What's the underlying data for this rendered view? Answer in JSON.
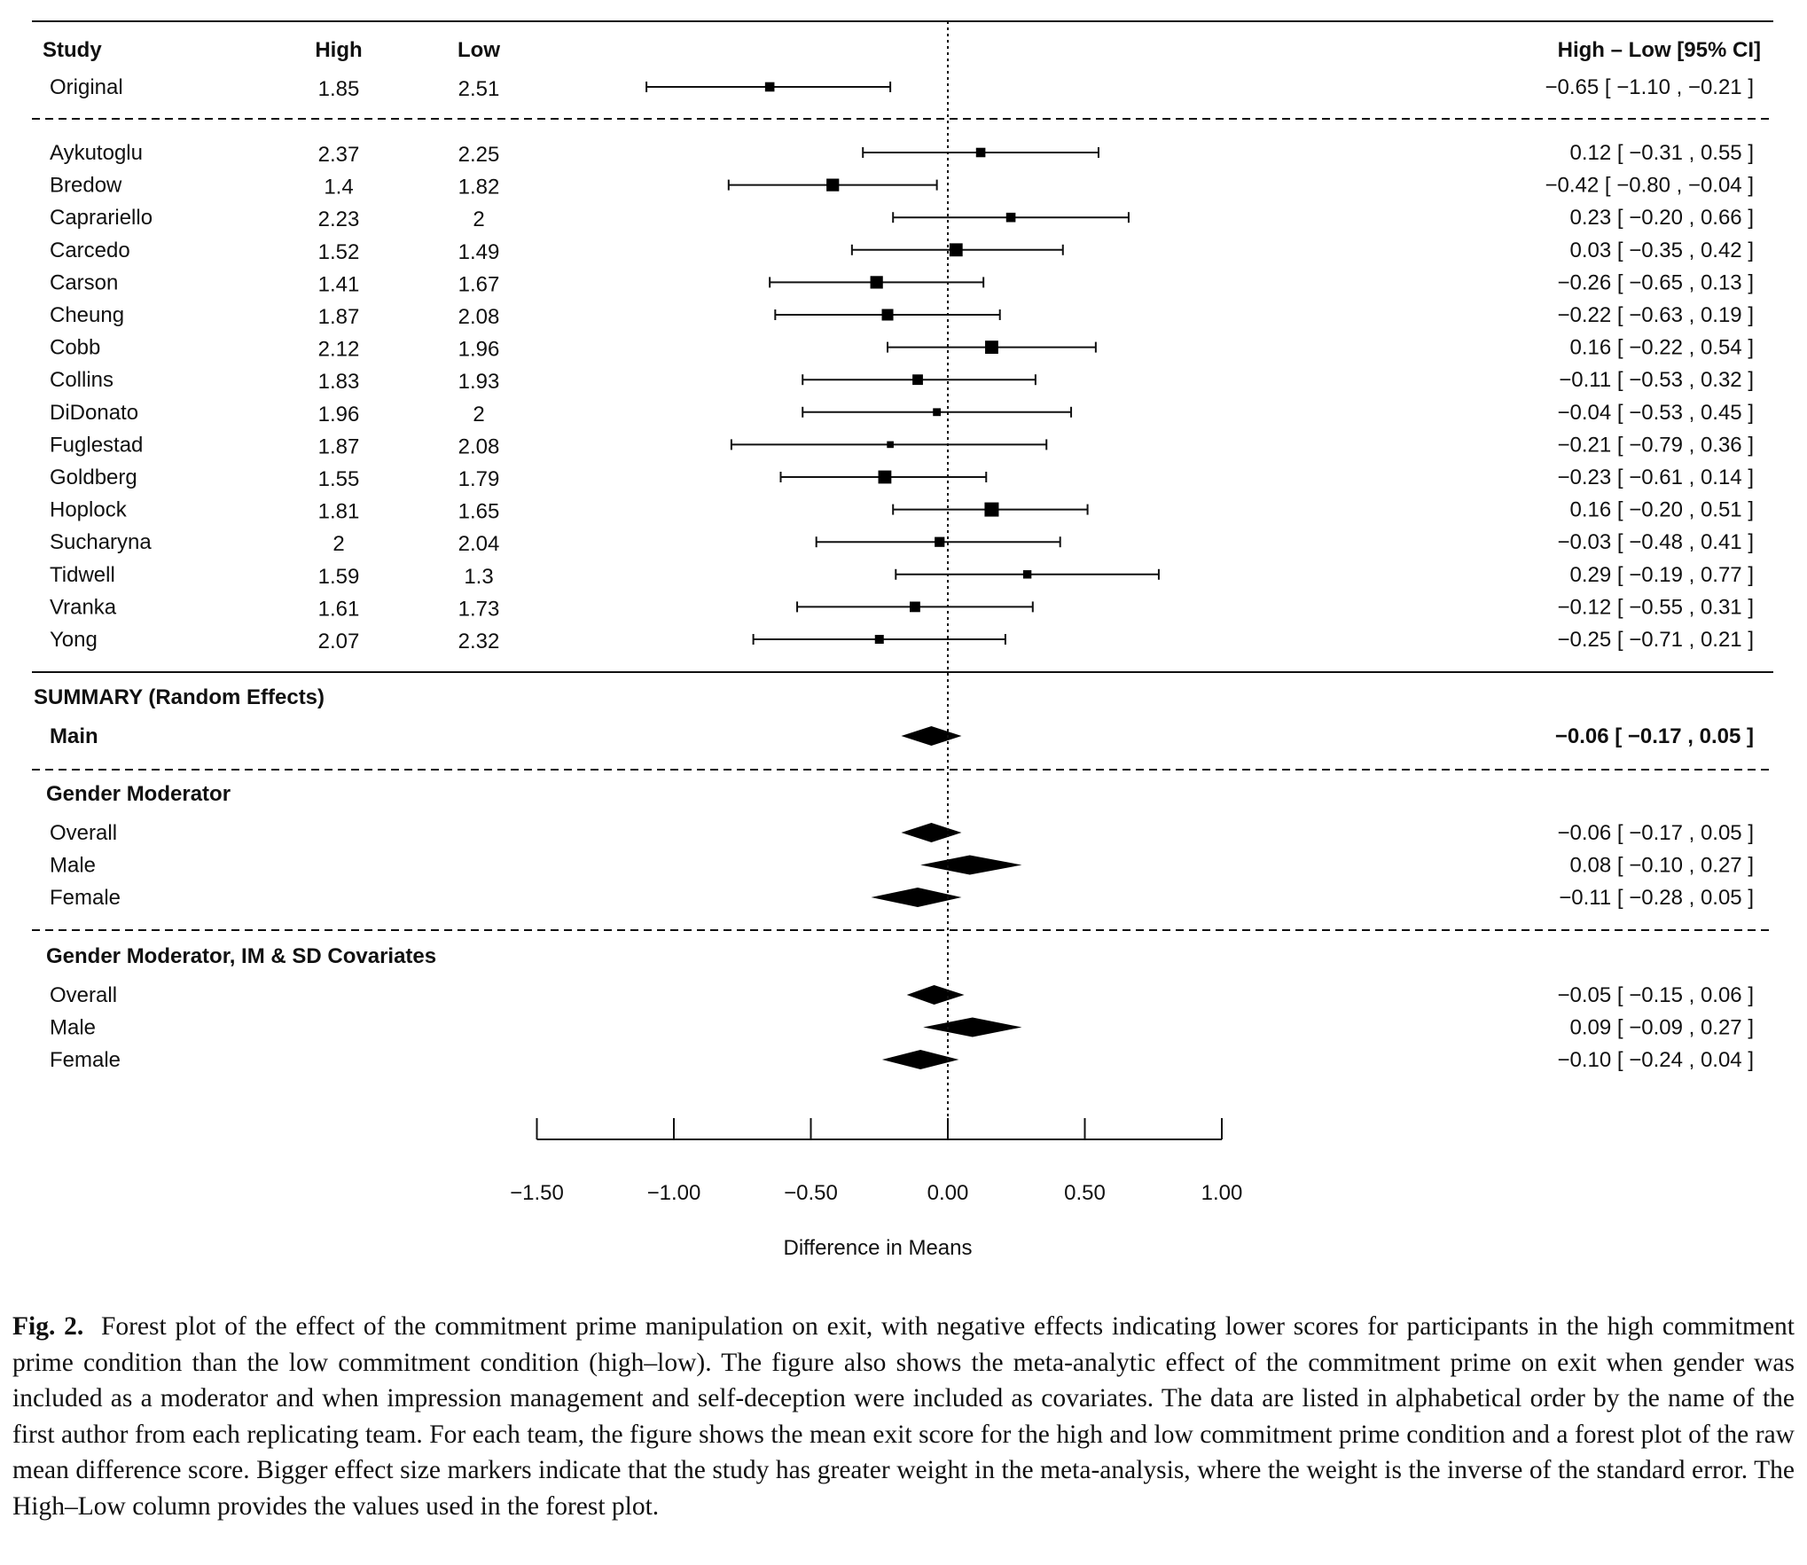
{
  "headers": {
    "study": "Study",
    "high": "High",
    "low": "Low",
    "ci": "High – Low [95% CI]"
  },
  "chart_data": {
    "type": "forest",
    "xlabel": "Difference in Means",
    "xlim": [
      -1.5,
      1.0
    ],
    "xticks": [
      -1.5,
      -1.0,
      -0.5,
      0.0,
      0.5,
      1.0
    ],
    "xtick_labels": [
      "−1.50",
      "−1.00",
      "−0.50",
      "0.00",
      "0.50",
      "1.00"
    ],
    "reference_line": 0.0,
    "original": [
      {
        "study": "Original",
        "high": "1.85",
        "low": "2.51",
        "est": -0.65,
        "lo": -1.1,
        "hi": -0.21,
        "weight": 0.55,
        "label": "−0.65 [ −1.10 , −0.21 ]"
      }
    ],
    "studies": [
      {
        "study": "Aykutoglu",
        "high": "2.37",
        "low": "2.25",
        "est": 0.12,
        "lo": -0.31,
        "hi": 0.55,
        "weight": 0.55,
        "label": "0.12 [ −0.31 ,  0.55 ]"
      },
      {
        "study": "Bredow",
        "high": "1.4",
        "low": "1.82",
        "est": -0.42,
        "lo": -0.8,
        "hi": -0.04,
        "weight": 0.85,
        "label": "−0.42 [ −0.80 , −0.04 ]"
      },
      {
        "study": "Caprariello",
        "high": "2.23",
        "low": "2",
        "est": 0.23,
        "lo": -0.2,
        "hi": 0.66,
        "weight": 0.55,
        "label": "0.23 [ −0.20 ,  0.66 ]"
      },
      {
        "study": "Carcedo",
        "high": "1.52",
        "low": "1.49",
        "est": 0.03,
        "lo": -0.35,
        "hi": 0.42,
        "weight": 0.9,
        "label": "0.03 [ −0.35 ,  0.42 ]"
      },
      {
        "study": "Carson",
        "high": "1.41",
        "low": "1.67",
        "est": -0.26,
        "lo": -0.65,
        "hi": 0.13,
        "weight": 0.85,
        "label": "−0.26 [ −0.65 ,  0.13 ]"
      },
      {
        "study": "Cheung",
        "high": "1.87",
        "low": "2.08",
        "est": -0.22,
        "lo": -0.63,
        "hi": 0.19,
        "weight": 0.75,
        "label": "−0.22 [ −0.63 ,  0.19 ]"
      },
      {
        "study": "Cobb",
        "high": "2.12",
        "low": "1.96",
        "est": 0.16,
        "lo": -0.22,
        "hi": 0.54,
        "weight": 0.9,
        "label": "0.16 [ −0.22 ,  0.54 ]"
      },
      {
        "study": "Collins",
        "high": "1.83",
        "low": "1.93",
        "est": -0.11,
        "lo": -0.53,
        "hi": 0.32,
        "weight": 0.65,
        "label": "−0.11 [ −0.53 ,  0.32 ]"
      },
      {
        "study": "DiDonato",
        "high": "1.96",
        "low": "2",
        "est": -0.04,
        "lo": -0.53,
        "hi": 0.45,
        "weight": 0.4,
        "label": "−0.04 [ −0.53 ,  0.45 ]"
      },
      {
        "study": "Fuglestad",
        "high": "1.87",
        "low": "2.08",
        "est": -0.21,
        "lo": -0.79,
        "hi": 0.36,
        "weight": 0.3,
        "label": "−0.21 [ −0.79 ,  0.36 ]"
      },
      {
        "study": "Goldberg",
        "high": "1.55",
        "low": "1.79",
        "est": -0.23,
        "lo": -0.61,
        "hi": 0.14,
        "weight": 0.9,
        "label": "−0.23 [ −0.61 ,  0.14 ]"
      },
      {
        "study": "Hoplock",
        "high": "1.81",
        "low": "1.65",
        "est": 0.16,
        "lo": -0.2,
        "hi": 0.51,
        "weight": 1.0,
        "label": "0.16 [ −0.20 ,  0.51 ]"
      },
      {
        "study": "Sucharyna",
        "high": "2",
        "low": "2.04",
        "est": -0.03,
        "lo": -0.48,
        "hi": 0.41,
        "weight": 0.6,
        "label": "−0.03 [ −0.48 ,  0.41 ]"
      },
      {
        "study": "Tidwell",
        "high": "1.59",
        "low": "1.3",
        "est": 0.29,
        "lo": -0.19,
        "hi": 0.77,
        "weight": 0.45,
        "label": "0.29 [ −0.19 ,  0.77 ]"
      },
      {
        "study": "Vranka",
        "high": "1.61",
        "low": "1.73",
        "est": -0.12,
        "lo": -0.55,
        "hi": 0.31,
        "weight": 0.65,
        "label": "−0.12 [ −0.55 ,  0.31 ]"
      },
      {
        "study": "Yong",
        "high": "2.07",
        "low": "2.32",
        "est": -0.25,
        "lo": -0.71,
        "hi": 0.21,
        "weight": 0.5,
        "label": "−0.25 [ −0.71 ,  0.21 ]"
      }
    ],
    "summary": {
      "title": "SUMMARY (Random Effects)",
      "rows": [
        {
          "name": "Main",
          "est": -0.06,
          "lo": -0.17,
          "hi": 0.05,
          "label": "−0.06 [ −0.17 , 0.05 ]"
        }
      ]
    },
    "groups": [
      {
        "title": "Gender Moderator",
        "rows": [
          {
            "name": "Overall",
            "est": -0.06,
            "lo": -0.17,
            "hi": 0.05,
            "label": "−0.06 [ −0.17 , 0.05 ]"
          },
          {
            "name": "Male",
            "est": 0.08,
            "lo": -0.1,
            "hi": 0.27,
            "label": "0.08 [ −0.10 , 0.27 ]"
          },
          {
            "name": "Female",
            "est": -0.11,
            "lo": -0.28,
            "hi": 0.05,
            "label": "−0.11 [ −0.28 , 0.05 ]"
          }
        ]
      },
      {
        "title": "Gender Moderator, IM & SD Covariates",
        "rows": [
          {
            "name": "Overall",
            "est": -0.05,
            "lo": -0.15,
            "hi": 0.06,
            "label": "−0.05 [ −0.15 , 0.06 ]"
          },
          {
            "name": "Male",
            "est": 0.09,
            "lo": -0.09,
            "hi": 0.27,
            "label": "0.09 [ −0.09 , 0.27 ]"
          },
          {
            "name": "Female",
            "est": -0.1,
            "lo": -0.24,
            "hi": 0.04,
            "label": "−0.10 [ −0.24 , 0.04 ]"
          }
        ]
      }
    ]
  },
  "caption": {
    "label": "Fig. 2.",
    "text": "Forest plot of the effect of the commitment prime manipulation on exit, with negative effects indicating lower scores for participants in the high commitment prime condition than the low commitment condition (high–low). The figure also shows the meta-analytic effect of the commitment prime on exit when gender was included as a moderator and when impression management and self-deception were included as covariates. The data are listed in alphabetical order by the name of the first author from each replicating team. For each team, the figure shows the mean exit score for the high and low commitment prime condition and a forest plot of the raw mean difference score. Bigger effect size markers indicate that the study has greater weight in the meta-analysis, where the weight is the inverse of the standard error. The High–Low column provides the values used in the forest plot."
  }
}
